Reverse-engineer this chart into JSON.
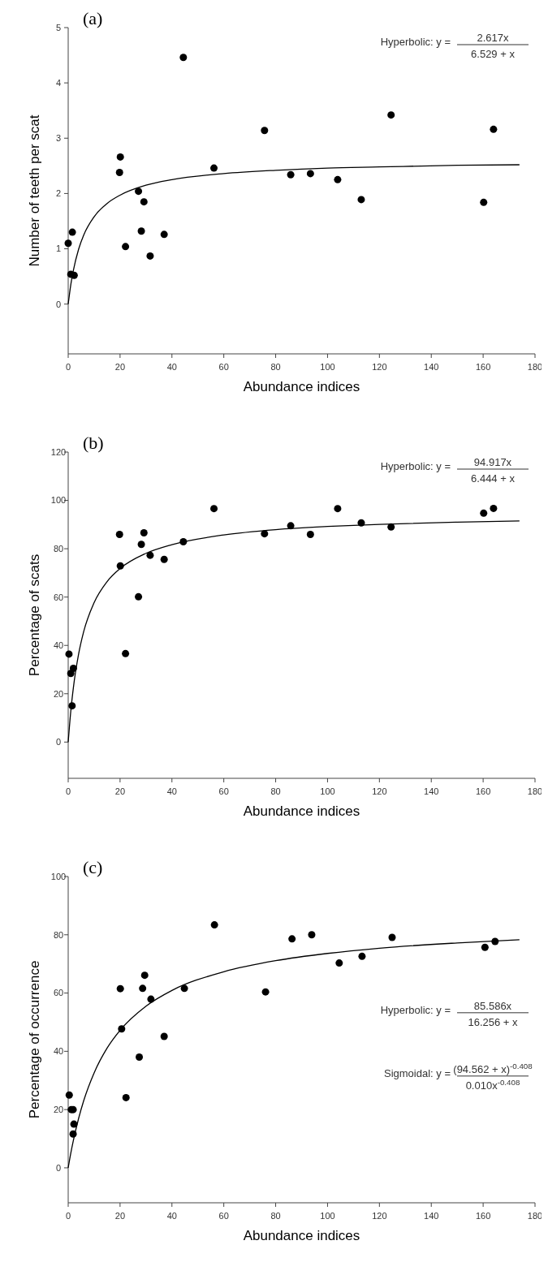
{
  "chart_data": [
    {
      "type": "scatter",
      "title": "(a)",
      "xlabel": "Abundance indices",
      "ylabel": "Number of teeth per scat",
      "xlim": [
        0,
        180
      ],
      "xticks": [
        0,
        20,
        40,
        60,
        80,
        100,
        120,
        140,
        160,
        180
      ],
      "ylim": [
        -0.9,
        5
      ],
      "yticks": [
        0,
        1,
        2,
        3,
        4,
        5
      ],
      "annotations": [
        "Hyperbolic: y =",
        "2.617x",
        "6.529 + x"
      ],
      "series": [
        {
          "marker": "circle",
          "color": "#000000",
          "x": [
            0,
            1.6,
            1,
            2.3,
            19.8,
            20.1,
            22.1,
            27.1,
            28.2,
            29.2,
            31.6,
            37,
            44.4,
            56.2,
            75.7,
            85.8,
            93.4,
            103.9,
            113,
            124.5,
            160.2,
            164
          ],
          "values": [
            1.1,
            1.3,
            0.54,
            0.52,
            2.38,
            2.66,
            1.04,
            2.04,
            1.32,
            1.85,
            0.87,
            1.26,
            4.46,
            2.46,
            3.14,
            2.34,
            2.36,
            2.25,
            1.89,
            3.42,
            1.84,
            3.16
          ]
        },
        {
          "type": "line",
          "marker": "none",
          "color": "#000000",
          "x": [
            0,
            1,
            2,
            4,
            6,
            10,
            15,
            20,
            30,
            40,
            60,
            80,
            100,
            120,
            150,
            174
          ],
          "values": [
            0,
            0.35,
            0.61,
            0.99,
            1.25,
            1.58,
            1.82,
            1.97,
            2.15,
            2.25,
            2.36,
            2.42,
            2.46,
            2.48,
            2.51,
            2.52
          ]
        }
      ]
    },
    {
      "type": "scatter",
      "title": "(b)",
      "xlabel": "Abundance indices",
      "ylabel": "Percentage of scats",
      "xlim": [
        0,
        180
      ],
      "xticks": [
        0,
        20,
        40,
        60,
        80,
        100,
        120,
        140,
        160,
        180
      ],
      "ylim": [
        -15,
        120
      ],
      "yticks": [
        0,
        20,
        40,
        60,
        80,
        100,
        120
      ],
      "annotations": [
        "Hyperbolic: y =",
        "94.917x",
        "6.444 + x"
      ],
      "series": [
        {
          "marker": "circle",
          "color": "#000000",
          "x": [
            0.3,
            1,
            2,
            1.5,
            19.8,
            20.1,
            22.1,
            27.1,
            28.2,
            29.2,
            31.6,
            37,
            44.4,
            56.2,
            75.7,
            85.8,
            93.4,
            103.9,
            113,
            124.5,
            160.2,
            164
          ],
          "values": [
            36.4,
            28.4,
            30.5,
            15,
            85.9,
            72.9,
            36.6,
            60.1,
            81.8,
            86.6,
            77.3,
            75.6,
            82.9,
            96.6,
            86.2,
            89.5,
            85.9,
            96.6,
            90.7,
            89,
            94.7,
            96.7
          ]
        },
        {
          "type": "line",
          "marker": "none",
          "color": "#000000",
          "x": [
            0,
            1,
            2,
            4,
            6,
            10,
            15,
            20,
            30,
            40,
            60,
            80,
            100,
            120,
            150,
            174
          ],
          "values": [
            0,
            12.8,
            22.5,
            36.3,
            45.8,
            57.7,
            66.4,
            71.8,
            78.1,
            81.7,
            85.7,
            87.9,
            89.2,
            90.1,
            91,
            91.5
          ]
        }
      ]
    },
    {
      "type": "scatter",
      "title": "(c)",
      "xlabel": "Abundance indices",
      "ylabel": "Percentage of occurrence",
      "xlim": [
        0,
        180
      ],
      "xticks": [
        0,
        20,
        40,
        60,
        80,
        100,
        120,
        140,
        160,
        180
      ],
      "ylim": [
        -12,
        100
      ],
      "yticks": [
        0,
        20,
        40,
        60,
        80,
        100
      ],
      "annotations": [
        "Hyperbolic: y =",
        "85.586x",
        "16.256 + x",
        "Sigmoidal: y =",
        "(94.562 + x)$^{-0.408}$",
        "0.010x$^{-0.408}$"
      ],
      "series": [
        {
          "marker": "circle",
          "color": "#000000",
          "x": [
            0.4,
            1.2,
            1.9,
            2.2,
            1.9,
            20.1,
            20.6,
            22.3,
            27.4,
            28.7,
            29.5,
            31.9,
            37,
            44.8,
            56.4,
            76.1,
            86.3,
            93.9,
            104.5,
            113.3,
            124.9,
            160.7,
            164.6
          ],
          "values": [
            25,
            20,
            20,
            15,
            11.6,
            61.5,
            47.7,
            24.1,
            38,
            61.6,
            66.1,
            57.9,
            45.1,
            61.6,
            83.4,
            60.4,
            78.6,
            80,
            70.3,
            72.6,
            79.1,
            75.7,
            77.7
          ]
        },
        {
          "type": "line",
          "marker": "none",
          "color": "#000000",
          "x": [
            0,
            1,
            2,
            4,
            6,
            10,
            15,
            20,
            30,
            40,
            60,
            80,
            100,
            120,
            150,
            174
          ],
          "values": [
            0,
            5,
            9.4,
            16.9,
            23.1,
            32.6,
            41.1,
            47.2,
            55.5,
            60.9,
            67.3,
            71.1,
            73.6,
            75.4,
            77.2,
            78.3
          ]
        }
      ]
    }
  ]
}
